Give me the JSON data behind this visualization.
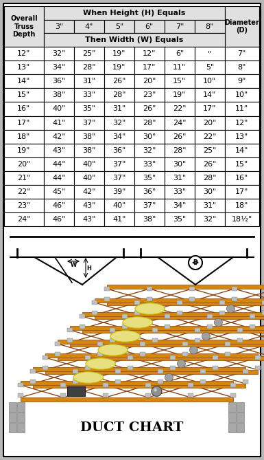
{
  "title": "DUCT CHART",
  "rows": [
    [
      "12\"",
      "32\"",
      "25\"",
      "19\"",
      "12\"",
      "6\"",
      "\"",
      "7\""
    ],
    [
      "13\"",
      "34\"",
      "28\"",
      "19\"",
      "17\"",
      "11\"",
      "5\"",
      "8\""
    ],
    [
      "14\"",
      "36\"",
      "31\"",
      "26\"",
      "20\"",
      "15\"",
      "10\"",
      "9\""
    ],
    [
      "15\"",
      "38\"",
      "33\"",
      "28\"",
      "23\"",
      "19\"",
      "14\"",
      "10\""
    ],
    [
      "16\"",
      "40\"",
      "35\"",
      "31\"",
      "26\"",
      "22\"",
      "17\"",
      "11\""
    ],
    [
      "17\"",
      "41\"",
      "37\"",
      "32\"",
      "28\"",
      "24\"",
      "20\"",
      "12\""
    ],
    [
      "18\"",
      "42\"",
      "38\"",
      "34\"",
      "30\"",
      "26\"",
      "22\"",
      "13\""
    ],
    [
      "19\"",
      "43\"",
      "38\"",
      "36\"",
      "32\"",
      "28\"",
      "25\"",
      "14\""
    ],
    [
      "20\"",
      "44\"",
      "40\"",
      "37\"",
      "33\"",
      "30\"",
      "26\"",
      "15\""
    ],
    [
      "21\"",
      "44\"",
      "40\"",
      "37\"",
      "35\"",
      "31\"",
      "28\"",
      "16\""
    ],
    [
      "22\"",
      "45\"",
      "42\"",
      "39\"",
      "36\"",
      "33\"",
      "30\"",
      "17\""
    ],
    [
      "23\"",
      "46\"",
      "43\"",
      "40\"",
      "37\"",
      "34\"",
      "31\"",
      "18\""
    ],
    [
      "24\"",
      "46\"",
      "43\"",
      "41\"",
      "38\"",
      "35\"",
      "32\"",
      "18½\""
    ]
  ],
  "col_heights": [
    "3\"",
    "4\"",
    "5\"",
    "6\"",
    "7\"",
    "8\""
  ],
  "bg_color": "#c8c8c8",
  "outer_bg": "#b8b8b8",
  "white_bg": "#ffffff",
  "truss_wood": "#d4870a",
  "truss_gray": "#a0a0a0",
  "truss_yellow": "#e8e080",
  "truss_darkgray": "#707070",
  "fig_width": 3.85,
  "fig_height": 6.69,
  "dpi": 100
}
